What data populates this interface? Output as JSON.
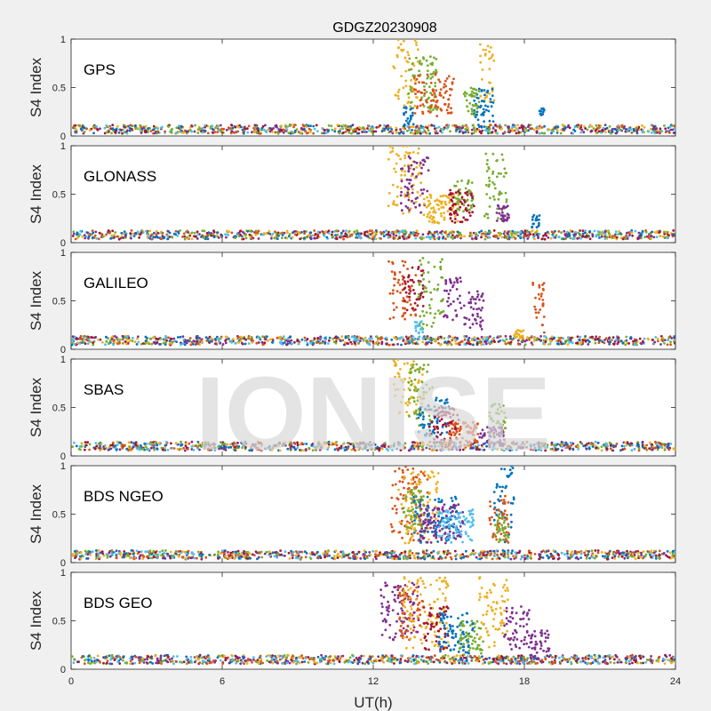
{
  "title": "GDGZ20230908",
  "xlabel": "UT(h)",
  "watermark": "IONISE",
  "colors": [
    "#0072BD",
    "#D95319",
    "#EDB120",
    "#7E2F8E",
    "#77AC30",
    "#4DBEEE",
    "#A2142F"
  ],
  "chart_data": {
    "type": "scatter",
    "xlim": [
      0,
      24
    ],
    "xticks": [
      0,
      6,
      12,
      18,
      24
    ],
    "xtick_labels": [
      "0",
      "6",
      "12",
      "18",
      "24"
    ],
    "ylim": [
      0,
      1
    ],
    "yticks": [
      0,
      0.5,
      1
    ],
    "ytick_labels": [
      "0",
      "0.5",
      "1"
    ],
    "ylabel": "S4 Index",
    "grid": false,
    "panels": [
      {
        "name": "GPS",
        "baseline": 0.07,
        "bursts": [
          {
            "color": 2,
            "x": [
              12.8,
              13.8
            ],
            "y": [
              0.3,
              1.0
            ]
          },
          {
            "color": 4,
            "x": [
              13.4,
              14.6
            ],
            "y": [
              0.25,
              0.85
            ]
          },
          {
            "color": 1,
            "x": [
              13.6,
              15.2
            ],
            "y": [
              0.2,
              0.65
            ]
          },
          {
            "color": 0,
            "x": [
              13.2,
              13.6
            ],
            "y": [
              0.1,
              0.3
            ]
          },
          {
            "color": 2,
            "x": [
              16.2,
              16.8
            ],
            "y": [
              0.3,
              0.95
            ]
          },
          {
            "color": 0,
            "x": [
              16.0,
              16.8
            ],
            "y": [
              0.15,
              0.5
            ]
          },
          {
            "color": 4,
            "x": [
              15.6,
              16.2
            ],
            "y": [
              0.2,
              0.5
            ]
          },
          {
            "color": 0,
            "x": [
              18.6,
              18.8
            ],
            "y": [
              0.2,
              0.3
            ]
          }
        ]
      },
      {
        "name": "GLONASS",
        "baseline": 0.08,
        "bursts": [
          {
            "color": 2,
            "x": [
              12.6,
              13.9
            ],
            "y": [
              0.3,
              1.0
            ]
          },
          {
            "color": 3,
            "x": [
              13.1,
              14.2
            ],
            "y": [
              0.3,
              0.9
            ]
          },
          {
            "color": 2,
            "x": [
              14.0,
              15.4
            ],
            "y": [
              0.2,
              0.5
            ]
          },
          {
            "color": 4,
            "x": [
              15.2,
              16.0
            ],
            "y": [
              0.3,
              0.65
            ]
          },
          {
            "color": 6,
            "x": [
              15.0,
              16.0
            ],
            "y": [
              0.2,
              0.55
            ]
          },
          {
            "color": 4,
            "x": [
              16.4,
              17.3
            ],
            "y": [
              0.2,
              0.95
            ]
          },
          {
            "color": 3,
            "x": [
              16.9,
              17.4
            ],
            "y": [
              0.2,
              0.4
            ]
          },
          {
            "color": 0,
            "x": [
              18.3,
              18.6
            ],
            "y": [
              0.15,
              0.3
            ]
          }
        ]
      },
      {
        "name": "GALILEO",
        "baseline": 0.09,
        "bursts": [
          {
            "color": 1,
            "x": [
              12.6,
              13.7
            ],
            "y": [
              0.3,
              0.95
            ]
          },
          {
            "color": 6,
            "x": [
              13.2,
              14.0
            ],
            "y": [
              0.4,
              0.85
            ]
          },
          {
            "color": 4,
            "x": [
              13.8,
              14.8
            ],
            "y": [
              0.2,
              0.95
            ]
          },
          {
            "color": 3,
            "x": [
              14.8,
              15.5
            ],
            "y": [
              0.3,
              0.75
            ]
          },
          {
            "color": 3,
            "x": [
              15.6,
              16.4
            ],
            "y": [
              0.2,
              0.6
            ]
          },
          {
            "color": 5,
            "x": [
              13.6,
              14.0
            ],
            "y": [
              0.1,
              0.3
            ]
          },
          {
            "color": 1,
            "x": [
              18.3,
              18.8
            ],
            "y": [
              0.15,
              0.7
            ]
          },
          {
            "color": 2,
            "x": [
              17.6,
              18.0
            ],
            "y": [
              0.1,
              0.2
            ]
          }
        ]
      },
      {
        "name": "SBAS",
        "baseline": 0.1,
        "bursts": [
          {
            "color": 2,
            "x": [
              12.8,
              14.0
            ],
            "y": [
              0.4,
              1.0
            ]
          },
          {
            "color": 4,
            "x": [
              13.4,
              14.4
            ],
            "y": [
              0.3,
              0.95
            ]
          },
          {
            "color": 0,
            "x": [
              13.8,
              15.0
            ],
            "y": [
              0.2,
              0.6
            ]
          },
          {
            "color": 6,
            "x": [
              14.2,
              15.4
            ],
            "y": [
              0.15,
              0.5
            ]
          },
          {
            "color": 1,
            "x": [
              15.0,
              16.2
            ],
            "y": [
              0.1,
              0.35
            ]
          },
          {
            "color": 4,
            "x": [
              16.6,
              17.3
            ],
            "y": [
              0.2,
              0.55
            ]
          },
          {
            "color": 3,
            "x": [
              16.2,
              17.2
            ],
            "y": [
              0.1,
              0.3
            ]
          }
        ]
      },
      {
        "name": "BDS NGEO",
        "baseline": 0.08,
        "bursts": [
          {
            "color": 1,
            "x": [
              12.7,
              14.2
            ],
            "y": [
              0.2,
              1.0
            ]
          },
          {
            "color": 2,
            "x": [
              13.0,
              14.6
            ],
            "y": [
              0.2,
              0.95
            ]
          },
          {
            "color": 0,
            "x": [
              13.6,
              15.4
            ],
            "y": [
              0.2,
              0.7
            ]
          },
          {
            "color": 3,
            "x": [
              13.8,
              15.6
            ],
            "y": [
              0.2,
              0.6
            ]
          },
          {
            "color": 5,
            "x": [
              14.6,
              16.0
            ],
            "y": [
              0.2,
              0.55
            ]
          },
          {
            "color": 4,
            "x": [
              13.2,
              14.0
            ],
            "y": [
              0.3,
              0.8
            ]
          },
          {
            "color": 0,
            "x": [
              16.8,
              17.6
            ],
            "y": [
              0.2,
              1.0
            ]
          },
          {
            "color": 1,
            "x": [
              16.6,
              17.4
            ],
            "y": [
              0.2,
              0.7
            ]
          },
          {
            "color": 4,
            "x": [
              16.8,
              17.4
            ],
            "y": [
              0.2,
              0.5
            ]
          }
        ]
      },
      {
        "name": "BDS GEO",
        "baseline": 0.1,
        "bursts": [
          {
            "color": 3,
            "x": [
              12.3,
              13.8
            ],
            "y": [
              0.3,
              0.9
            ]
          },
          {
            "color": 1,
            "x": [
              13.0,
              14.0
            ],
            "y": [
              0.3,
              0.85
            ]
          },
          {
            "color": 2,
            "x": [
              13.2,
              15.0
            ],
            "y": [
              0.2,
              0.95
            ]
          },
          {
            "color": 6,
            "x": [
              14.0,
              15.0
            ],
            "y": [
              0.2,
              0.65
            ]
          },
          {
            "color": 0,
            "x": [
              14.6,
              16.0
            ],
            "y": [
              0.15,
              0.6
            ]
          },
          {
            "color": 4,
            "x": [
              15.4,
              16.4
            ],
            "y": [
              0.15,
              0.5
            ]
          },
          {
            "color": 2,
            "x": [
              16.2,
              17.4
            ],
            "y": [
              0.2,
              0.95
            ]
          },
          {
            "color": 3,
            "x": [
              17.2,
              18.2
            ],
            "y": [
              0.2,
              0.65
            ]
          },
          {
            "color": 3,
            "x": [
              18.2,
              19.0
            ],
            "y": [
              0.1,
              0.4
            ]
          }
        ]
      }
    ]
  }
}
